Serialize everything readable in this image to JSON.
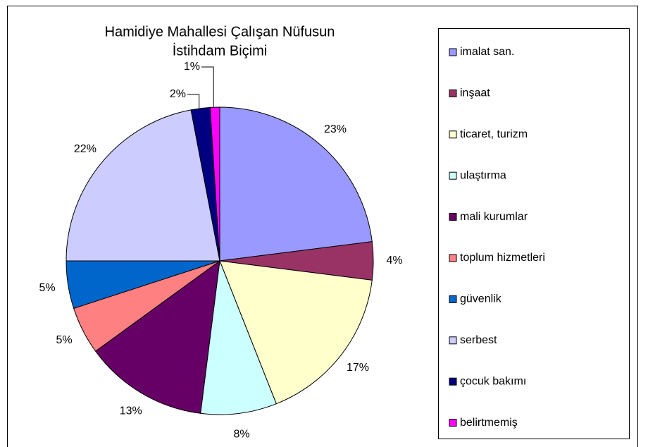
{
  "chart_data": {
    "type": "pie",
    "title": [
      "Hamidiye Mahallesi Çalışan Nüfusun",
      "İstihdam Biçimi"
    ],
    "categories": [
      "imalat san.",
      "inşaat",
      "ticaret, turizm",
      "ulaştırma",
      "mali kurumlar",
      "toplum hizmetleri",
      "güvenlik",
      "serbest",
      "çocuk bakımı",
      "belirtmemiş"
    ],
    "values": [
      23,
      4,
      17,
      8,
      13,
      5,
      5,
      22,
      2,
      1
    ],
    "value_labels": [
      "23%",
      "4%",
      "17%",
      "8%",
      "13%",
      "5%",
      "5%",
      "22%",
      "2%",
      "1%"
    ],
    "colors": [
      "#9999ff",
      "#993366",
      "#ffffcc",
      "#ccffff",
      "#660066",
      "#ff8080",
      "#0066cc",
      "#ccccff",
      "#000080",
      "#ff00ff"
    ],
    "legend": "right"
  }
}
